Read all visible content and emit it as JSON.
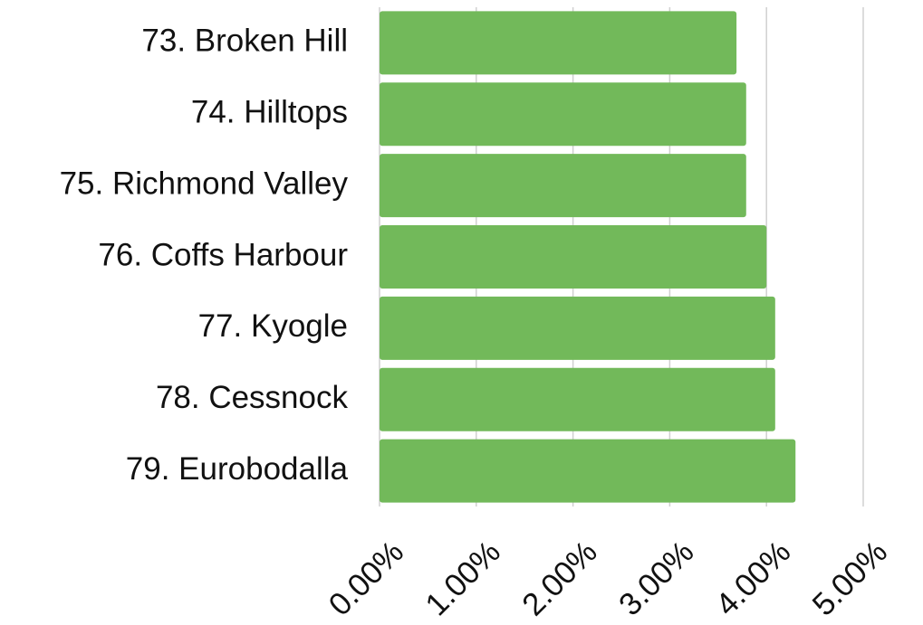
{
  "chart_data": {
    "type": "bar",
    "orientation": "horizontal",
    "categories": [
      "73. Broken Hill",
      "74. Hilltops",
      "75. Richmond Valley",
      "76. Coffs Harbour",
      "77. Kyogle",
      "78. Cessnock",
      "79. Eurobodalla"
    ],
    "values": [
      3.69,
      3.79,
      3.79,
      4.0,
      4.09,
      4.09,
      4.3
    ],
    "color": "#72b95a",
    "xlim": [
      0,
      5
    ],
    "xticks": [
      {
        "value": 0,
        "label": "0.00%"
      },
      {
        "value": 1,
        "label": "1.00%"
      },
      {
        "value": 2,
        "label": "2.00%"
      },
      {
        "value": 3,
        "label": "3.00%"
      },
      {
        "value": 4,
        "label": "4.00%"
      },
      {
        "value": 5,
        "label": "5.00%"
      }
    ],
    "grid": true
  }
}
